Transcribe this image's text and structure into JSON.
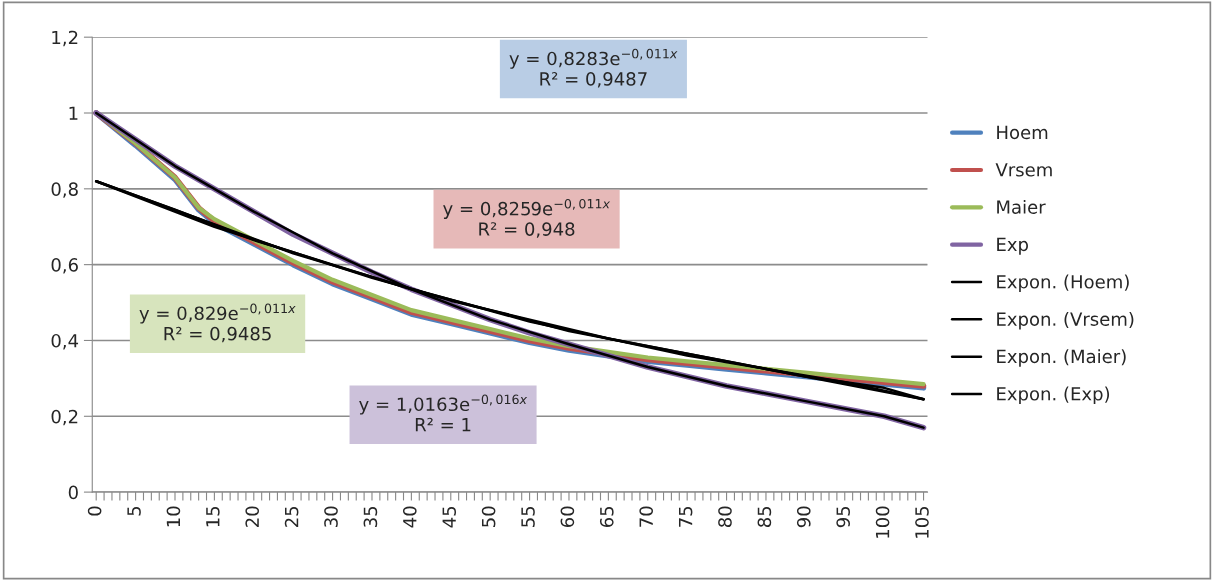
{
  "chart_data": {
    "type": "line",
    "xlim": [
      -0.5,
      105.5
    ],
    "xticks": [
      0,
      {
        "value": 1,
        "label": null
      },
      {
        "value": 2,
        "label": null
      },
      {
        "value": 3,
        "label": null
      },
      {
        "value": 4,
        "label": null
      },
      5,
      {
        "value": 6,
        "label": null
      },
      {
        "value": 7,
        "label": null
      },
      {
        "value": 8,
        "label": null
      },
      {
        "value": 9,
        "label": null
      },
      10,
      {
        "value": 11,
        "label": null
      },
      {
        "value": 12,
        "label": null
      },
      {
        "value": 13,
        "label": null
      },
      {
        "value": 14,
        "label": null
      },
      15,
      {
        "value": 16,
        "label": null
      },
      {
        "value": 17,
        "label": null
      },
      {
        "value": 18,
        "label": null
      },
      {
        "value": 19,
        "label": null
      },
      20,
      {
        "value": 21,
        "label": null
      },
      {
        "value": 22,
        "label": null
      },
      {
        "value": 23,
        "label": null
      },
      {
        "value": 24,
        "label": null
      },
      25,
      {
        "value": 26,
        "label": null
      },
      {
        "value": 27,
        "label": null
      },
      {
        "value": 28,
        "label": null
      },
      {
        "value": 29,
        "label": null
      },
      30,
      {
        "value": 31,
        "label": null
      },
      {
        "value": 32,
        "label": null
      },
      {
        "value": 33,
        "label": null
      },
      {
        "value": 34,
        "label": null
      },
      35,
      {
        "value": 36,
        "label": null
      },
      {
        "value": 37,
        "label": null
      },
      {
        "value": 38,
        "label": null
      },
      {
        "value": 39,
        "label": null
      },
      40,
      {
        "value": 41,
        "label": null
      },
      {
        "value": 42,
        "label": null
      },
      {
        "value": 43,
        "label": null
      },
      {
        "value": 44,
        "label": null
      },
      45,
      {
        "value": 46,
        "label": null
      },
      {
        "value": 47,
        "label": null
      },
      {
        "value": 48,
        "label": null
      },
      {
        "value": 49,
        "label": null
      },
      50,
      {
        "value": 51,
        "label": null
      },
      {
        "value": 52,
        "label": null
      },
      {
        "value": 53,
        "label": null
      },
      {
        "value": 54,
        "label": null
      },
      55,
      {
        "value": 56,
        "label": null
      },
      {
        "value": 57,
        "label": null
      },
      {
        "value": 58,
        "label": null
      },
      {
        "value": 59,
        "label": null
      },
      60,
      {
        "value": 61,
        "label": null
      },
      {
        "value": 62,
        "label": null
      },
      {
        "value": 63,
        "label": null
      },
      {
        "value": 64,
        "label": null
      },
      65,
      {
        "value": 66,
        "label": null
      },
      {
        "value": 67,
        "label": null
      },
      {
        "value": 68,
        "label": null
      },
      {
        "value": 69,
        "label": null
      },
      70,
      {
        "value": 71,
        "label": null
      },
      {
        "value": 72,
        "label": null
      },
      {
        "value": 73,
        "label": null
      },
      {
        "value": 74,
        "label": null
      },
      75,
      {
        "value": 76,
        "label": null
      },
      {
        "value": 77,
        "label": null
      },
      {
        "value": 78,
        "label": null
      },
      {
        "value": 79,
        "label": null
      },
      80,
      {
        "value": 81,
        "label": null
      },
      {
        "value": 82,
        "label": null
      },
      {
        "value": 83,
        "label": null
      },
      {
        "value": 84,
        "label": null
      },
      85,
      {
        "value": 86,
        "label": null
      },
      {
        "value": 87,
        "label": null
      },
      {
        "value": 88,
        "label": null
      },
      {
        "value": 89,
        "label": null
      },
      90,
      {
        "value": 91,
        "label": null
      },
      {
        "value": 92,
        "label": null
      },
      {
        "value": 93,
        "label": null
      },
      {
        "value": 94,
        "label": null
      },
      95,
      {
        "value": 96,
        "label": null
      },
      {
        "value": 97,
        "label": null
      },
      {
        "value": 98,
        "label": null
      },
      {
        "value": 99,
        "label": null
      },
      100,
      {
        "value": 101,
        "label": null
      },
      {
        "value": 102,
        "label": null
      },
      {
        "value": 103,
        "label": null
      },
      {
        "value": 104,
        "label": null
      },
      105
    ],
    "ylim": [
      0,
      1.2
    ],
    "yticks": [
      0,
      {
        "value": 0.2,
        "label": "0,2"
      },
      {
        "value": 0.4,
        "label": "0,4"
      },
      {
        "value": 0.6,
        "label": "0,6"
      },
      {
        "value": 0.8,
        "label": "0,8"
      },
      1,
      {
        "value": 1.2,
        "label": "1,2"
      }
    ],
    "grid": "y",
    "legend": "right",
    "marker": "none",
    "line_style": "solid",
    "series": [
      {
        "name": "Hoem",
        "color": "#4f81bd",
        "x": [
          0,
          5,
          10,
          13,
          15,
          20,
          25,
          30,
          35,
          40,
          45,
          50,
          55,
          60,
          65,
          70,
          75,
          80,
          85,
          90,
          95,
          100,
          105
        ],
        "values": [
          1.0,
          0.915,
          0.825,
          0.745,
          0.71,
          0.655,
          0.6,
          0.55,
          0.51,
          0.47,
          0.445,
          0.42,
          0.395,
          0.375,
          0.36,
          0.345,
          0.335,
          0.325,
          0.315,
          0.305,
          0.295,
          0.285,
          0.275
        ]
      },
      {
        "name": "Vrsem",
        "color": "#c0504d",
        "x": [
          0,
          5,
          10,
          13,
          15,
          20,
          25,
          30,
          35,
          40,
          45,
          50,
          55,
          60,
          65,
          70,
          75,
          80,
          85,
          90,
          95,
          100,
          105
        ],
        "values": [
          1.0,
          0.92,
          0.83,
          0.75,
          0.715,
          0.66,
          0.605,
          0.555,
          0.515,
          0.475,
          0.45,
          0.425,
          0.4,
          0.38,
          0.365,
          0.35,
          0.34,
          0.33,
          0.32,
          0.31,
          0.3,
          0.29,
          0.28
        ]
      },
      {
        "name": "Maier",
        "color": "#9bbb59",
        "x": [
          0,
          5,
          10,
          13,
          15,
          20,
          25,
          30,
          35,
          40,
          45,
          50,
          55,
          60,
          65,
          70,
          75,
          80,
          85,
          90,
          95,
          100,
          105
        ],
        "values": [
          1.0,
          0.92,
          0.83,
          0.75,
          0.72,
          0.665,
          0.61,
          0.56,
          0.52,
          0.48,
          0.455,
          0.43,
          0.405,
          0.385,
          0.37,
          0.355,
          0.345,
          0.335,
          0.325,
          0.315,
          0.305,
          0.295,
          0.285
        ]
      },
      {
        "name": "Exp",
        "color": "#8064a2",
        "x": [
          0,
          5,
          10,
          15,
          20,
          25,
          30,
          35,
          40,
          45,
          50,
          55,
          60,
          65,
          70,
          75,
          80,
          85,
          90,
          95,
          100,
          105
        ],
        "values": [
          1.0,
          0.93,
          0.86,
          0.8,
          0.74,
          0.68,
          0.63,
          0.58,
          0.535,
          0.495,
          0.455,
          0.42,
          0.39,
          0.36,
          0.33,
          0.305,
          0.28,
          0.26,
          0.24,
          0.22,
          0.2,
          0.17
        ]
      },
      {
        "name": "Expon. (Hoem)",
        "color": "#000000",
        "x": [
          0,
          10,
          20,
          30,
          40,
          50,
          60,
          70,
          80,
          90,
          100,
          105
        ],
        "values": [
          0.82,
          0.745,
          0.665,
          0.6,
          0.535,
          0.48,
          0.425,
          0.385,
          0.345,
          0.305,
          0.275,
          0.245
        ]
      },
      {
        "name": "Expon. (Vrsem)",
        "color": "#000000",
        "x": [
          0,
          15,
          35,
          55,
          75,
          95,
          105
        ],
        "values": [
          0.82,
          0.7,
          0.565,
          0.45,
          0.36,
          0.29,
          0.245
        ]
      },
      {
        "name": "Expon. (Maier)",
        "color": "#000000",
        "x": [
          0,
          25,
          45,
          65,
          85,
          105
        ],
        "values": [
          0.82,
          0.63,
          0.505,
          0.405,
          0.325,
          0.245
        ]
      },
      {
        "name": "Expon. (Exp)",
        "color": "#000000",
        "x": [
          0,
          10,
          20,
          30,
          40,
          50,
          60,
          70,
          80,
          90,
          100,
          105
        ],
        "values": [
          1.0,
          0.86,
          0.74,
          0.63,
          0.535,
          0.455,
          0.39,
          0.33,
          0.28,
          0.24,
          0.2,
          0.17
        ]
      }
    ],
    "annotations": [
      "y = 0,8283e$^{−0,011x}$\nR² = 0,9487",
      "y = 0,8259e$^{−0,011x}$\nR² = 0,948",
      "y = 0,829e$^{−0,011x}$\nR² = 0,9485",
      "y = 1,0163e$^{−0,016x}$\nR² = 1"
    ]
  }
}
